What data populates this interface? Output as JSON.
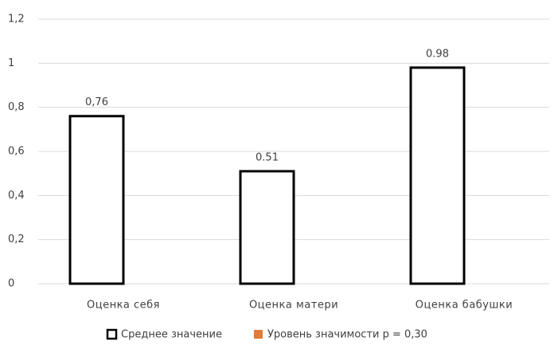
{
  "chart_data": {
    "type": "bar",
    "categories": [
      "Оценка себя",
      "Оценка матери",
      "Оценка бабушки"
    ],
    "series": [
      {
        "name": "Среднее значение",
        "color": "#ffffff",
        "values": [
          0.76,
          0.51,
          0.98
        ],
        "value_labels": [
          "0,76",
          "0.51",
          "0.98"
        ]
      },
      {
        "name": "Уровень значимости p = 0,30",
        "color": "#e07b39",
        "values": [
          null,
          null,
          null
        ]
      }
    ],
    "ylim": [
      0,
      1.2
    ],
    "yticks": [
      0,
      {
        "value": 0.2,
        "label": "0,2"
      },
      {
        "value": 0.4,
        "label": "0,4"
      },
      {
        "value": 0.6,
        "label": "0,6"
      },
      {
        "value": 0.8,
        "label": "0,8"
      },
      1,
      {
        "value": 1.2,
        "label": "1,2"
      }
    ],
    "grid": true
  }
}
